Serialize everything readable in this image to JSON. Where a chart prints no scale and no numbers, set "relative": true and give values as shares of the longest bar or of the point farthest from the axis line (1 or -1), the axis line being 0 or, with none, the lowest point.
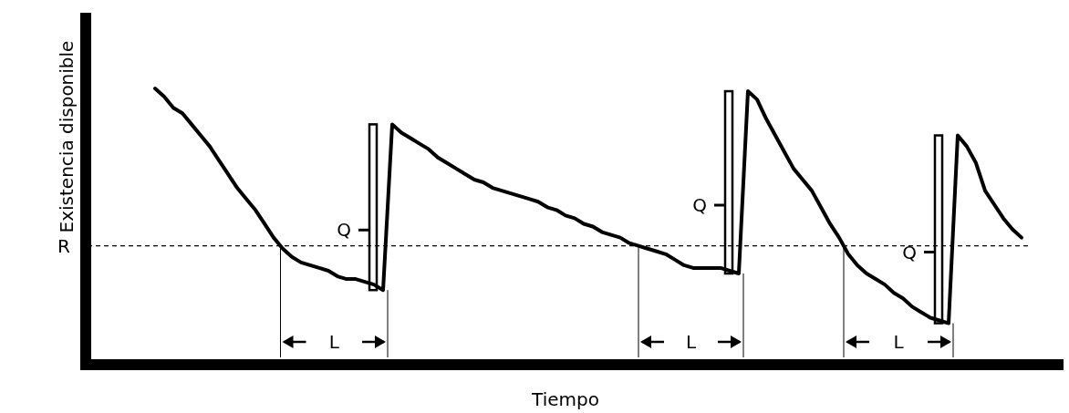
{
  "chart_data": {
    "type": "line",
    "relative": true,
    "xlabel": "Tiempo",
    "ylabel": "Existencia disponible",
    "color": "#000000",
    "line_style": "solid",
    "marker": "none",
    "categories": [
      null,
      null,
      null,
      null,
      null,
      null,
      null,
      null,
      null,
      null,
      null,
      null,
      null,
      null,
      null,
      null,
      null,
      null,
      null,
      null,
      null,
      null,
      null,
      null,
      null,
      null,
      null,
      null,
      null,
      null,
      null,
      null,
      null,
      null,
      null,
      null,
      null,
      null,
      null,
      null,
      null,
      null,
      null,
      null,
      null,
      null,
      null,
      null,
      null,
      null,
      null,
      null,
      null,
      null,
      null,
      null,
      null,
      null,
      null,
      null,
      null,
      null,
      null,
      null,
      null,
      null,
      null,
      null,
      null,
      null,
      null,
      null,
      null,
      null,
      null,
      null,
      null,
      null,
      null,
      null,
      null,
      null,
      null,
      null,
      null,
      null,
      null,
      null,
      null,
      null,
      null,
      null,
      null,
      null,
      null,
      null
    ],
    "values": [
      1.0,
      0.97,
      0.93,
      0.91,
      0.87,
      0.83,
      0.79,
      0.74,
      0.69,
      0.64,
      0.6,
      0.56,
      0.51,
      0.46,
      0.42,
      0.39,
      0.37,
      0.36,
      0.35,
      0.34,
      0.32,
      0.31,
      0.31,
      0.3,
      0.29,
      0.27,
      0.87,
      0.84,
      0.82,
      0.8,
      0.78,
      0.75,
      0.73,
      0.71,
      0.69,
      0.67,
      0.66,
      0.64,
      0.63,
      0.62,
      0.61,
      0.6,
      0.59,
      0.57,
      0.56,
      0.54,
      0.53,
      0.51,
      0.5,
      0.48,
      0.47,
      0.46,
      0.44,
      0.43,
      0.42,
      0.41,
      0.4,
      0.38,
      0.36,
      0.35,
      0.35,
      0.35,
      0.35,
      0.34,
      0.33,
      0.99,
      0.96,
      0.89,
      0.83,
      0.77,
      0.71,
      0.67,
      0.63,
      0.57,
      0.51,
      0.46,
      0.4,
      0.36,
      0.33,
      0.31,
      0.29,
      0.26,
      0.24,
      0.21,
      0.19,
      0.17,
      0.16,
      0.15,
      0.83,
      0.79,
      0.73,
      0.63,
      0.58,
      0.53,
      0.49,
      0.46
    ],
    "ref_lines": [
      {
        "axis": "y",
        "value": 0.43,
        "label": "R",
        "line_style": "dashed",
        "color": "#000000"
      }
    ],
    "annotations": [
      "Q",
      "L",
      "Q",
      "L",
      "Q",
      "L"
    ]
  }
}
